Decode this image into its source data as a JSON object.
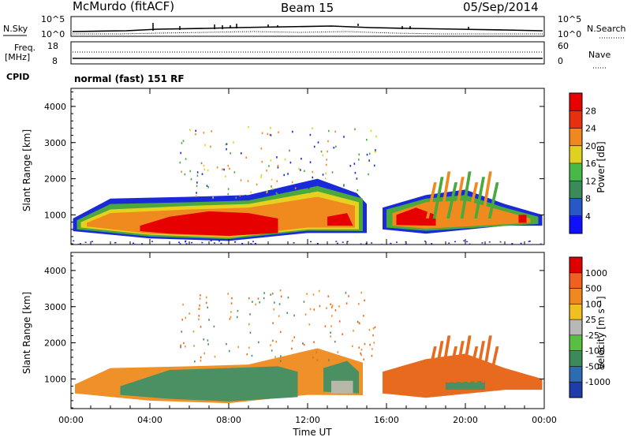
{
  "header": {
    "station": "McMurdo (fitACF)",
    "beam": "Beam 15",
    "date": "05/Sep/2014"
  },
  "noise_panel": {
    "left_label": "N.Sky",
    "right_label": "N.Search",
    "tick_top": "10^5",
    "tick_bottom": "10^0"
  },
  "freq_panel": {
    "left_label_1": "Freq.",
    "left_label_2": "[MHz]",
    "left_top": "18",
    "left_bottom": "8",
    "right_label": "Nave",
    "right_top": "60",
    "right_bottom": "0",
    "cpid_label": "CPID",
    "cpid_text": "normal (fast) 151 RF"
  },
  "x_axis": {
    "label": "Time UT",
    "ticks": [
      "00:00",
      "04:00",
      "08:00",
      "12:00",
      "16:00",
      "20:00",
      "00:00"
    ]
  },
  "chart_data": [
    {
      "type": "heatmap",
      "name": "power",
      "ylabel": "Slant Range [km]",
      "yticks": [
        "1000",
        "2000",
        "3000",
        "4000"
      ],
      "ylim": [
        180,
        4500
      ],
      "xlim": [
        0,
        24
      ],
      "colorbar_label": "Power [dB]",
      "colorbar_ticks": [
        "4",
        "8",
        "12",
        "16",
        "20",
        "24",
        "28"
      ],
      "colorbar_colors": [
        "#1010ff",
        "#2858c8",
        "#3b8a5a",
        "#48b848",
        "#e0d020",
        "#f08820",
        "#e83010",
        "#e80000"
      ],
      "colors": {
        "blue": "#1a2ad8",
        "green": "#4aa83c",
        "yellow": "#e8d020",
        "orange": "#f08a1e",
        "red": "#e60000"
      }
    },
    {
      "type": "heatmap",
      "name": "velocity",
      "ylabel": "Slant Range [km]",
      "yticks": [
        "1000",
        "2000",
        "3000",
        "4000"
      ],
      "ylim": [
        180,
        4500
      ],
      "xlim": [
        0,
        24
      ],
      "colorbar_label": "Velocity [m s⁻¹]",
      "colorbar_ticks": [
        "1000",
        "500",
        "100",
        "25",
        "-25",
        "-100",
        "-500",
        "-1000"
      ],
      "colorbar_colors": [
        "#1e3caa",
        "#2c6cb0",
        "#3c8a5a",
        "#58c040",
        "#b8b8b8",
        "#f0c020",
        "#f08820",
        "#f06020",
        "#e00000"
      ],
      "colors": {
        "seagreen": "#4a9062",
        "orange": "#f09028",
        "darkorange": "#e86a1e",
        "grey": "#b8b8a8"
      }
    }
  ]
}
